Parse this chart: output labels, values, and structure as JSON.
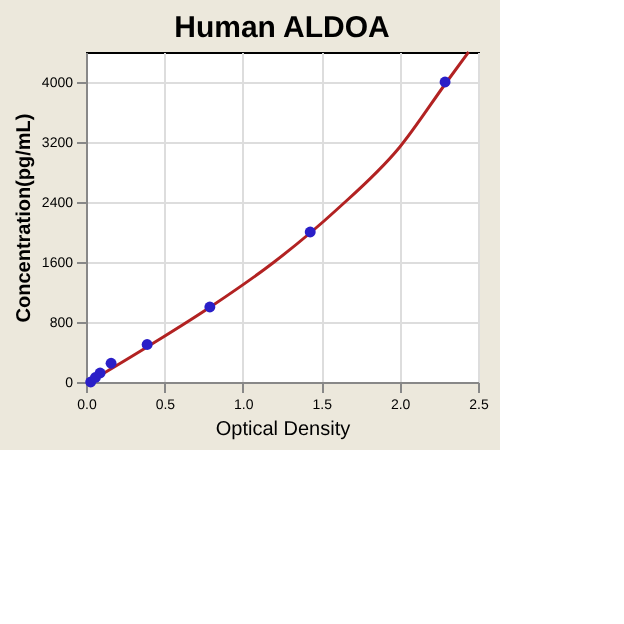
{
  "chart_data": {
    "type": "scatter",
    "title": "Human ALDOA",
    "xlabel": "Optical Density",
    "ylabel": "Concentration(pg/mL)",
    "xlim": [
      0,
      2.5
    ],
    "ylim": [
      0,
      4400
    ],
    "xticks": [
      {
        "value": 0,
        "label": "0.0"
      },
      0.5,
      {
        "value": 1,
        "label": "1.0"
      },
      1.5,
      {
        "value": 2,
        "label": "2.0"
      },
      2.5
    ],
    "yticks": [
      0,
      800,
      1600,
      2400,
      3200,
      4000
    ],
    "grid": true,
    "marker": "circle",
    "series": [
      {
        "type": "line",
        "color": "#b22222",
        "x": [
          0.02,
          0.4,
          0.8,
          1.2,
          1.6,
          2.0,
          2.3,
          2.44
        ],
        "values": [
          0,
          480,
          1010,
          1600,
          2300,
          3130,
          4000,
          4400
        ],
        "marker": "none"
      },
      {
        "color": "#2a1fc8",
        "x": [
          0.03,
          0.06,
          0.09,
          0.16,
          0.39,
          0.79,
          1.43,
          2.29
        ],
        "values": [
          0,
          60,
          120,
          250,
          500,
          1000,
          2000,
          4000
        ]
      }
    ]
  }
}
